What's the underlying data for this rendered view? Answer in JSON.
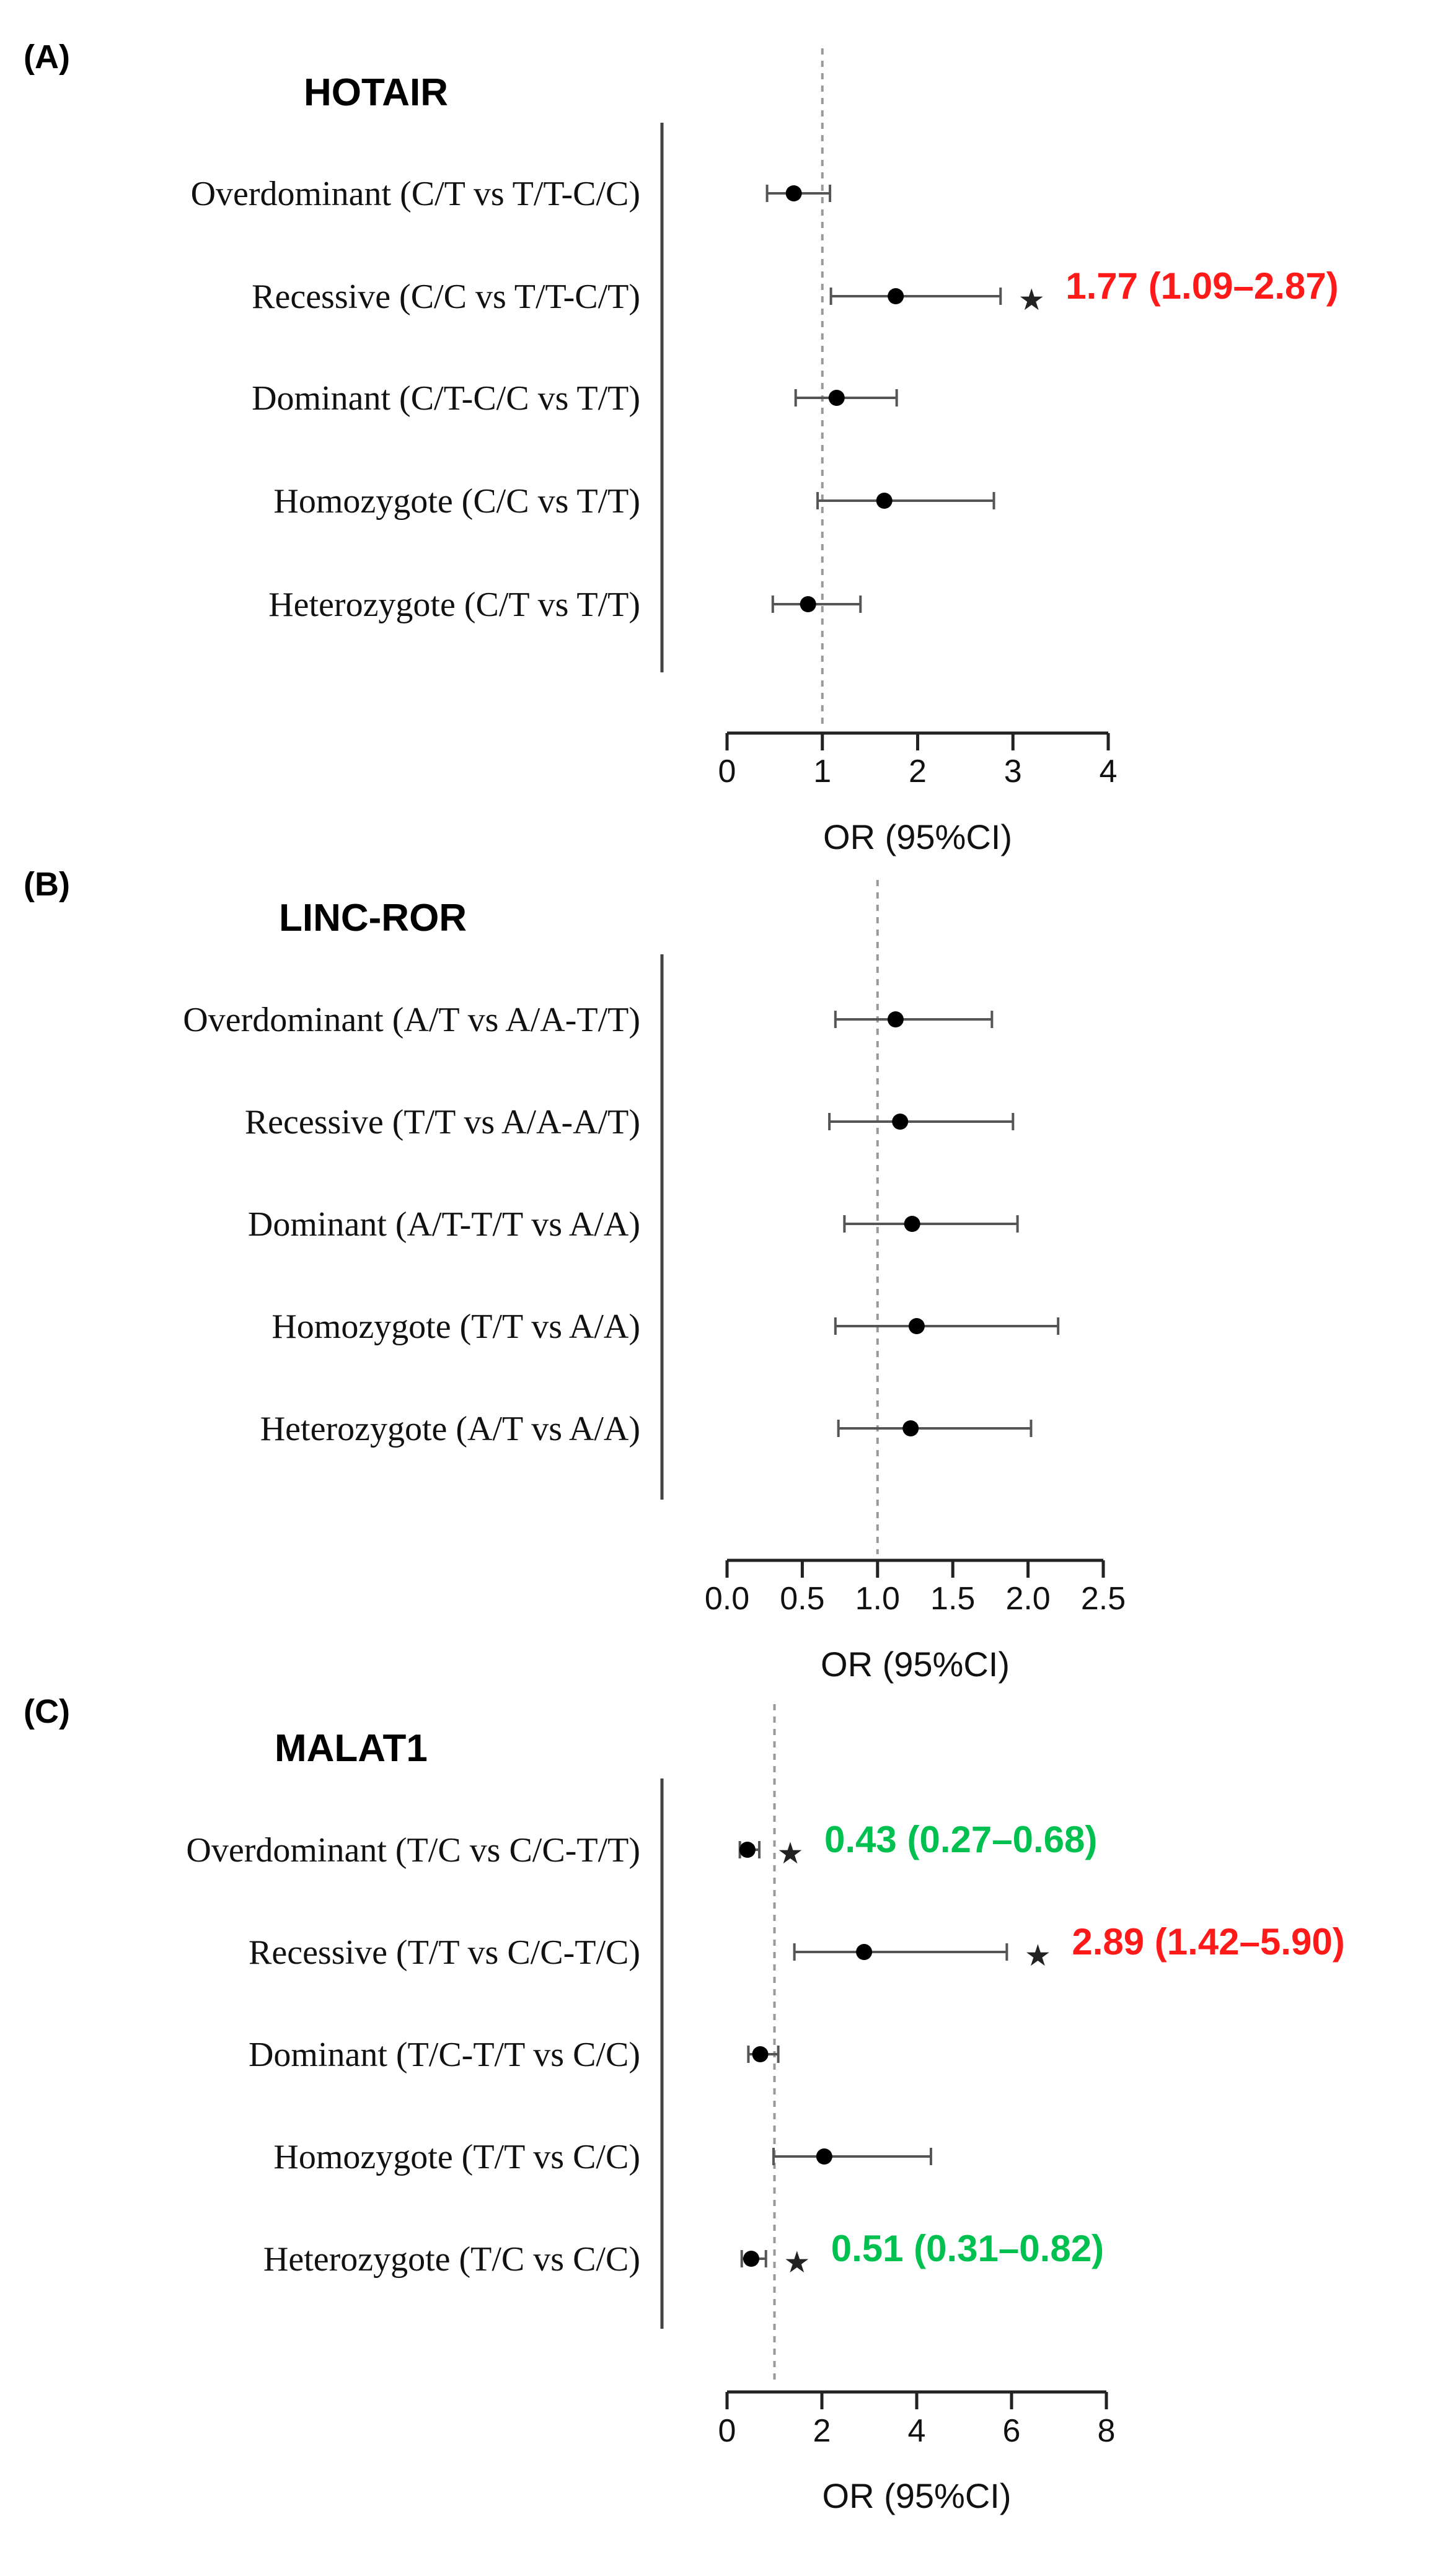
{
  "chart_data": [
    {
      "type": "forest",
      "panel": "(A)",
      "title": "HOTAIR",
      "xlabel": "OR (95%CI)",
      "xlim": [
        0,
        4
      ],
      "ticks": [
        "0",
        "1",
        "2",
        "3",
        "4"
      ],
      "reference_line": 1,
      "rows": [
        {
          "label": "Overdominant (C/T vs T/T-C/C)",
          "or": 0.7,
          "lo": 0.42,
          "hi": 1.08,
          "sig": false,
          "annotation": "",
          "color": ""
        },
        {
          "label": "Recessive (C/C vs T/T-C/T)",
          "or": 1.77,
          "lo": 1.09,
          "hi": 2.87,
          "sig": true,
          "annotation": "1.77 (1.09–2.87)",
          "color": "#ff1a1a"
        },
        {
          "label": "Dominant (C/T-C/C vs T/T)",
          "or": 1.15,
          "lo": 0.72,
          "hi": 1.78,
          "sig": false,
          "annotation": "",
          "color": ""
        },
        {
          "label": "Homozygote (C/C vs T/T)",
          "or": 1.65,
          "lo": 0.95,
          "hi": 2.8,
          "sig": false,
          "annotation": "",
          "color": ""
        },
        {
          "label": "Heterozygote (C/T vs T/T)",
          "or": 0.85,
          "lo": 0.48,
          "hi": 1.4,
          "sig": false,
          "annotation": "",
          "color": ""
        }
      ]
    },
    {
      "type": "forest",
      "panel": "(B)",
      "title": "LINC-ROR",
      "xlabel": "OR (95%CI)",
      "xlim": [
        0,
        2.5
      ],
      "ticks": [
        "0.0",
        "0.5",
        "1.0",
        "1.5",
        "2.0",
        "2.5"
      ],
      "reference_line": 1,
      "rows": [
        {
          "label": "Overdominant (A/T vs A/A-T/T)",
          "or": 1.12,
          "lo": 0.72,
          "hi": 1.76,
          "sig": false,
          "annotation": "",
          "color": ""
        },
        {
          "label": "Recessive (T/T vs A/A-A/T)",
          "or": 1.15,
          "lo": 0.68,
          "hi": 1.9,
          "sig": false,
          "annotation": "",
          "color": ""
        },
        {
          "label": "Dominant (A/T-T/T vs A/A)",
          "or": 1.23,
          "lo": 0.78,
          "hi": 1.93,
          "sig": false,
          "annotation": "",
          "color": ""
        },
        {
          "label": "Homozygote (T/T vs A/A)",
          "or": 1.26,
          "lo": 0.72,
          "hi": 2.2,
          "sig": false,
          "annotation": "",
          "color": ""
        },
        {
          "label": "Heterozygote (A/T vs A/A)",
          "or": 1.22,
          "lo": 0.74,
          "hi": 2.02,
          "sig": false,
          "annotation": "",
          "color": ""
        }
      ]
    },
    {
      "type": "forest",
      "panel": "(C)",
      "title": "MALAT1",
      "xlabel": "OR (95%CI)",
      "xlim": [
        0,
        8
      ],
      "ticks": [
        "0",
        "2",
        "4",
        "6",
        "8"
      ],
      "reference_line": 1,
      "rows": [
        {
          "label": "Overdominant (T/C vs C/C-T/T)",
          "or": 0.43,
          "lo": 0.27,
          "hi": 0.68,
          "sig": true,
          "annotation": "0.43 (0.27–0.68)",
          "color": "#00c050"
        },
        {
          "label": "Recessive (T/T vs C/C-T/C)",
          "or": 2.89,
          "lo": 1.42,
          "hi": 5.9,
          "sig": true,
          "annotation": "2.89 (1.42–5.90)",
          "color": "#ff1a1a"
        },
        {
          "label": "Dominant (T/C-T/T vs C/C)",
          "or": 0.7,
          "lo": 0.45,
          "hi": 1.08,
          "sig": false,
          "annotation": "",
          "color": ""
        },
        {
          "label": "Homozygote (T/T vs C/C)",
          "or": 2.05,
          "lo": 0.98,
          "hi": 4.3,
          "sig": false,
          "annotation": "",
          "color": ""
        },
        {
          "label": "Heterozygote (T/C vs C/C)",
          "or": 0.51,
          "lo": 0.31,
          "hi": 0.82,
          "sig": true,
          "annotation": "0.51 (0.31–0.82)",
          "color": "#00c050"
        }
      ]
    }
  ],
  "star_symbol": "★"
}
